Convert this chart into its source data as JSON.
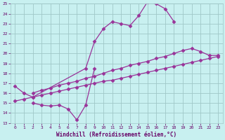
{
  "xlabel": "Windchill (Refroidissement éolien,°C)",
  "bg_color": "#c8f0f0",
  "grid_color": "#a0c8c8",
  "line_color": "#993399",
  "xlim": [
    -0.5,
    23.5
  ],
  "ylim": [
    13,
    25
  ],
  "xticks": [
    0,
    1,
    2,
    3,
    4,
    5,
    6,
    7,
    8,
    9,
    10,
    11,
    12,
    13,
    14,
    15,
    16,
    17,
    18,
    19,
    20,
    21,
    22,
    23
  ],
  "yticks": [
    13,
    14,
    15,
    16,
    17,
    18,
    19,
    20,
    21,
    22,
    23,
    24,
    25
  ],
  "series": [
    {
      "x": [
        0,
        1,
        2,
        8,
        9,
        10,
        11,
        12,
        13,
        14,
        15,
        16,
        17,
        18
      ],
      "y": [
        16.7,
        16.0,
        15.6,
        18.5,
        21.2,
        22.5,
        23.2,
        23.0,
        22.8,
        23.8,
        25.2,
        25.0,
        24.5,
        23.2
      ]
    },
    {
      "x": [
        2,
        3,
        4,
        5,
        6,
        7,
        8,
        9,
        10,
        11,
        12,
        13,
        14,
        15,
        16,
        17,
        18,
        19,
        20,
        21,
        22,
        23
      ],
      "y": [
        16.0,
        16.3,
        16.5,
        16.8,
        17.0,
        17.2,
        17.5,
        17.7,
        18.0,
        18.3,
        18.5,
        18.8,
        19.0,
        19.2,
        19.5,
        19.7,
        20.0,
        20.3,
        20.5,
        20.2,
        19.8,
        19.8
      ]
    },
    {
      "x": [
        0,
        1,
        2,
        3,
        4,
        5,
        6,
        7,
        8,
        9,
        10,
        11,
        12,
        13,
        14,
        15,
        16,
        17,
        18,
        19,
        20,
        21,
        22,
        23
      ],
      "y": [
        15.2,
        15.4,
        15.6,
        15.8,
        16.0,
        16.2,
        16.4,
        16.6,
        16.8,
        17.0,
        17.2,
        17.3,
        17.5,
        17.7,
        17.9,
        18.1,
        18.3,
        18.5,
        18.7,
        18.9,
        19.1,
        19.3,
        19.5,
        19.7
      ]
    },
    {
      "x": [
        2,
        3,
        4,
        5,
        6,
        7,
        8,
        9
      ],
      "y": [
        15.0,
        14.8,
        14.7,
        14.8,
        14.4,
        13.3,
        14.8,
        18.5
      ]
    }
  ]
}
